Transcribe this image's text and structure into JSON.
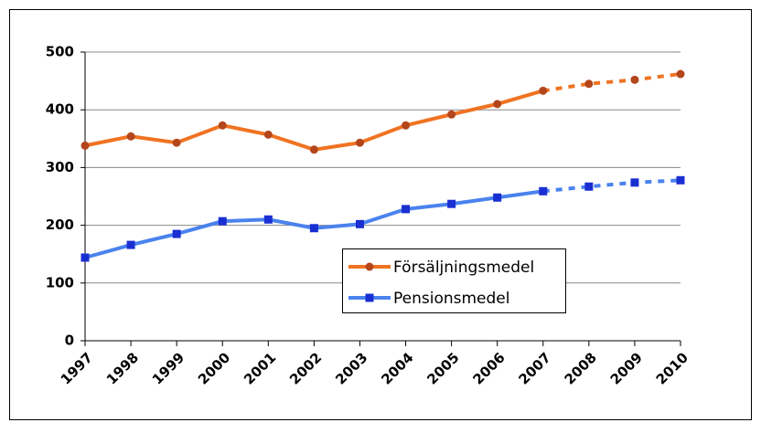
{
  "chart_data": {
    "type": "line",
    "categories": [
      "1997",
      "1998",
      "1999",
      "2000",
      "2001",
      "2002",
      "2003",
      "2004",
      "2005",
      "2006",
      "2007",
      "2008",
      "2009",
      "2010"
    ],
    "series": [
      {
        "name": "Försäljningsmedel",
        "color": "#f07322",
        "marker_color": "#b4461c",
        "marker": "circle",
        "values": [
          338,
          354,
          343,
          373,
          357,
          331,
          343,
          373,
          392,
          410,
          433,
          445,
          452,
          462
        ]
      },
      {
        "name": "Pensionsmedel",
        "color": "#4a82ee",
        "marker_color": "#1a2fd2",
        "marker": "square",
        "values": [
          144,
          166,
          185,
          207,
          210,
          195,
          202,
          228,
          237,
          248,
          259,
          267,
          274,
          278
        ]
      }
    ],
    "dashed_from": "2007",
    "ylim": [
      0,
      500
    ],
    "yticks": [
      0,
      100,
      200,
      300,
      400,
      500
    ],
    "grid": true
  }
}
